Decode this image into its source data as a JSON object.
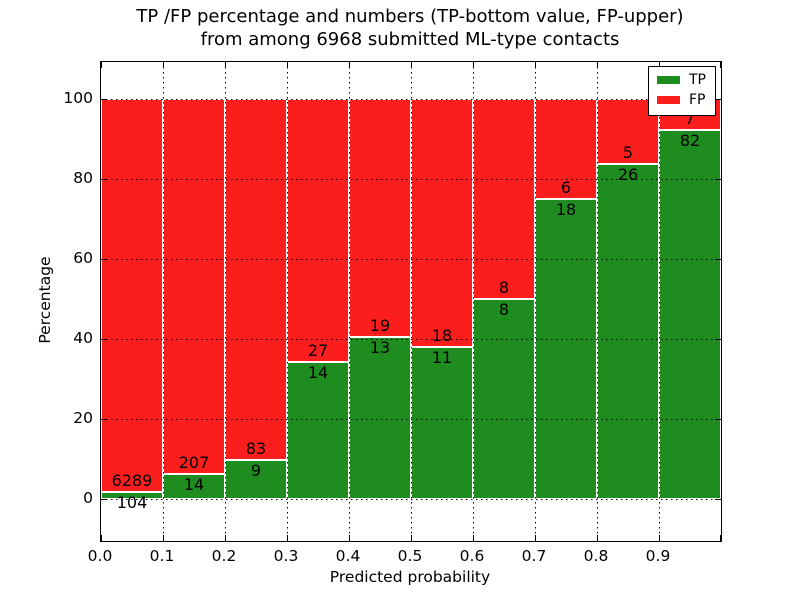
{
  "chart_data": {
    "type": "bar",
    "variant": "stacked-percentage-histogram",
    "title": "TP /FP percentage and numbers (TP-bottom value, FP-upper) from among 6968 submitted ML-type contacts",
    "title_lines": [
      "TP /FP percentage and numbers (TP-bottom value, FP-upper)",
      "from among 6968 submitted ML-type contacts"
    ],
    "xlabel": "Predicted probability",
    "ylabel": "Percentage",
    "total_contacts": 6968,
    "x_bin_edges": [
      0.0,
      0.1,
      0.2,
      0.3,
      0.4,
      0.5,
      0.6,
      0.7,
      0.8,
      0.9,
      1.0
    ],
    "x_tick_labels": [
      "0.0",
      "0.1",
      "0.2",
      "0.3",
      "0.4",
      "0.5",
      "0.6",
      "0.7",
      "0.8",
      "0.9"
    ],
    "y_ticks": [
      0,
      20,
      40,
      60,
      80,
      100
    ],
    "xlim": [
      0.0,
      1.0
    ],
    "ylim": [
      -10.5,
      109.3
    ],
    "grid": {
      "on": true,
      "style": "dotted",
      "color": "#000000"
    },
    "colors": {
      "tp": "#1f8c1f",
      "fp": "#fc1d1d",
      "bar_edge": "#ffffff"
    },
    "series": [
      {
        "name": "TP",
        "position": "bottom",
        "color": "#1f8c1f",
        "values": [
          104,
          14,
          9,
          14,
          13,
          11,
          8,
          18,
          26,
          82
        ]
      },
      {
        "name": "FP",
        "position": "top",
        "color": "#fc1d1d",
        "values": [
          6289,
          207,
          83,
          27,
          19,
          18,
          8,
          6,
          5,
          7
        ]
      }
    ],
    "legend": {
      "position": "upper-right",
      "entries": [
        {
          "label": "TP",
          "color": "#1f8c1f"
        },
        {
          "label": "FP",
          "color": "#fc1d1d"
        }
      ]
    }
  }
}
